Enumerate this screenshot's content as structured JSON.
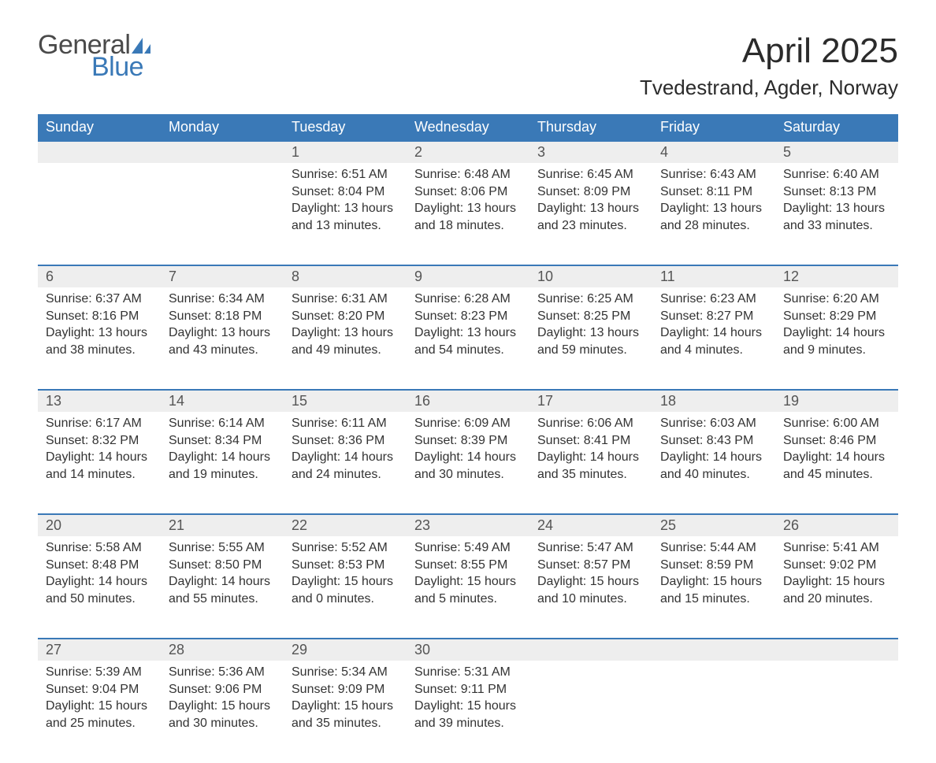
{
  "logo": {
    "general": "General",
    "blue": "Blue",
    "brand_color": "#3a79b7"
  },
  "title": "April 2025",
  "location": "Tvedestrand, Agder, Norway",
  "weekdays": [
    "Sunday",
    "Monday",
    "Tuesday",
    "Wednesday",
    "Thursday",
    "Friday",
    "Saturday"
  ],
  "colors": {
    "header_bg": "#3a79b7",
    "header_fg": "#ffffff",
    "daynum_bg": "#eeeeee",
    "daynum_border": "#3a79b7",
    "text": "#333333",
    "page_bg": "#ffffff"
  },
  "weeks": [
    [
      null,
      null,
      {
        "n": "1",
        "sr": "6:51 AM",
        "ss": "8:04 PM",
        "dl": "13 hours and 13 minutes."
      },
      {
        "n": "2",
        "sr": "6:48 AM",
        "ss": "8:06 PM",
        "dl": "13 hours and 18 minutes."
      },
      {
        "n": "3",
        "sr": "6:45 AM",
        "ss": "8:09 PM",
        "dl": "13 hours and 23 minutes."
      },
      {
        "n": "4",
        "sr": "6:43 AM",
        "ss": "8:11 PM",
        "dl": "13 hours and 28 minutes."
      },
      {
        "n": "5",
        "sr": "6:40 AM",
        "ss": "8:13 PM",
        "dl": "13 hours and 33 minutes."
      }
    ],
    [
      {
        "n": "6",
        "sr": "6:37 AM",
        "ss": "8:16 PM",
        "dl": "13 hours and 38 minutes."
      },
      {
        "n": "7",
        "sr": "6:34 AM",
        "ss": "8:18 PM",
        "dl": "13 hours and 43 minutes."
      },
      {
        "n": "8",
        "sr": "6:31 AM",
        "ss": "8:20 PM",
        "dl": "13 hours and 49 minutes."
      },
      {
        "n": "9",
        "sr": "6:28 AM",
        "ss": "8:23 PM",
        "dl": "13 hours and 54 minutes."
      },
      {
        "n": "10",
        "sr": "6:25 AM",
        "ss": "8:25 PM",
        "dl": "13 hours and 59 minutes."
      },
      {
        "n": "11",
        "sr": "6:23 AM",
        "ss": "8:27 PM",
        "dl": "14 hours and 4 minutes."
      },
      {
        "n": "12",
        "sr": "6:20 AM",
        "ss": "8:29 PM",
        "dl": "14 hours and 9 minutes."
      }
    ],
    [
      {
        "n": "13",
        "sr": "6:17 AM",
        "ss": "8:32 PM",
        "dl": "14 hours and 14 minutes."
      },
      {
        "n": "14",
        "sr": "6:14 AM",
        "ss": "8:34 PM",
        "dl": "14 hours and 19 minutes."
      },
      {
        "n": "15",
        "sr": "6:11 AM",
        "ss": "8:36 PM",
        "dl": "14 hours and 24 minutes."
      },
      {
        "n": "16",
        "sr": "6:09 AM",
        "ss": "8:39 PM",
        "dl": "14 hours and 30 minutes."
      },
      {
        "n": "17",
        "sr": "6:06 AM",
        "ss": "8:41 PM",
        "dl": "14 hours and 35 minutes."
      },
      {
        "n": "18",
        "sr": "6:03 AM",
        "ss": "8:43 PM",
        "dl": "14 hours and 40 minutes."
      },
      {
        "n": "19",
        "sr": "6:00 AM",
        "ss": "8:46 PM",
        "dl": "14 hours and 45 minutes."
      }
    ],
    [
      {
        "n": "20",
        "sr": "5:58 AM",
        "ss": "8:48 PM",
        "dl": "14 hours and 50 minutes."
      },
      {
        "n": "21",
        "sr": "5:55 AM",
        "ss": "8:50 PM",
        "dl": "14 hours and 55 minutes."
      },
      {
        "n": "22",
        "sr": "5:52 AM",
        "ss": "8:53 PM",
        "dl": "15 hours and 0 minutes."
      },
      {
        "n": "23",
        "sr": "5:49 AM",
        "ss": "8:55 PM",
        "dl": "15 hours and 5 minutes."
      },
      {
        "n": "24",
        "sr": "5:47 AM",
        "ss": "8:57 PM",
        "dl": "15 hours and 10 minutes."
      },
      {
        "n": "25",
        "sr": "5:44 AM",
        "ss": "8:59 PM",
        "dl": "15 hours and 15 minutes."
      },
      {
        "n": "26",
        "sr": "5:41 AM",
        "ss": "9:02 PM",
        "dl": "15 hours and 20 minutes."
      }
    ],
    [
      {
        "n": "27",
        "sr": "5:39 AM",
        "ss": "9:04 PM",
        "dl": "15 hours and 25 minutes."
      },
      {
        "n": "28",
        "sr": "5:36 AM",
        "ss": "9:06 PM",
        "dl": "15 hours and 30 minutes."
      },
      {
        "n": "29",
        "sr": "5:34 AM",
        "ss": "9:09 PM",
        "dl": "15 hours and 35 minutes."
      },
      {
        "n": "30",
        "sr": "5:31 AM",
        "ss": "9:11 PM",
        "dl": "15 hours and 39 minutes."
      },
      null,
      null,
      null
    ]
  ],
  "labels": {
    "sunrise": "Sunrise: ",
    "sunset": "Sunset: ",
    "daylight": "Daylight: "
  }
}
